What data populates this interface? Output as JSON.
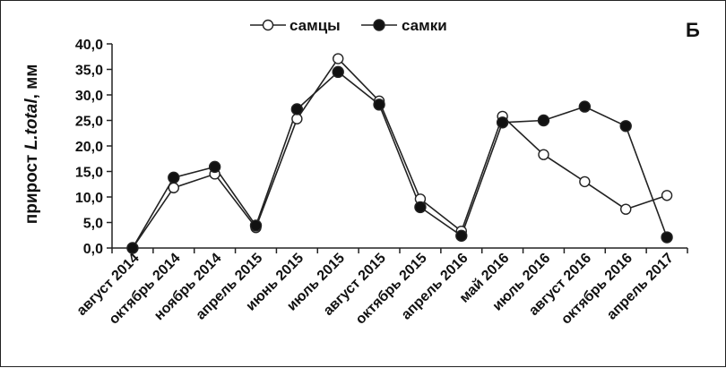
{
  "chart_data": {
    "type": "line",
    "panel_label": "Б",
    "ylabel_prefix": "прирост ",
    "ylabel_italic": "L.total",
    "ylabel_suffix": ", мм",
    "ylim": [
      0,
      40
    ],
    "yticks": [
      "0,0",
      "5,0",
      "10,0",
      "15,0",
      "20,0",
      "25,0",
      "30,0",
      "35,0",
      "40,0"
    ],
    "categories": [
      "август 2014",
      "октябрь 2014",
      "ноябрь 2014",
      "апрель 2015",
      "июнь 2015",
      "июль 2015",
      "август 2015",
      "октябрь 2015",
      "апрель 2016",
      "май 2016",
      "июль 2016",
      "август 2016",
      "октябрь 2016",
      "апрель 2017"
    ],
    "legend_position": "top-center",
    "grid": false,
    "series": [
      {
        "name": "самцы",
        "marker": "open-circle",
        "values": [
          0.0,
          11.8,
          14.5,
          4.0,
          25.3,
          37.1,
          28.8,
          9.6,
          3.3,
          25.8,
          18.3,
          13.0,
          7.6,
          10.3
        ]
      },
      {
        "name": "самки",
        "marker": "filled-circle",
        "values": [
          0.0,
          13.8,
          15.9,
          4.4,
          27.2,
          34.5,
          28.1,
          8.0,
          2.4,
          24.6,
          25.0,
          27.7,
          23.9,
          2.1
        ]
      }
    ]
  }
}
